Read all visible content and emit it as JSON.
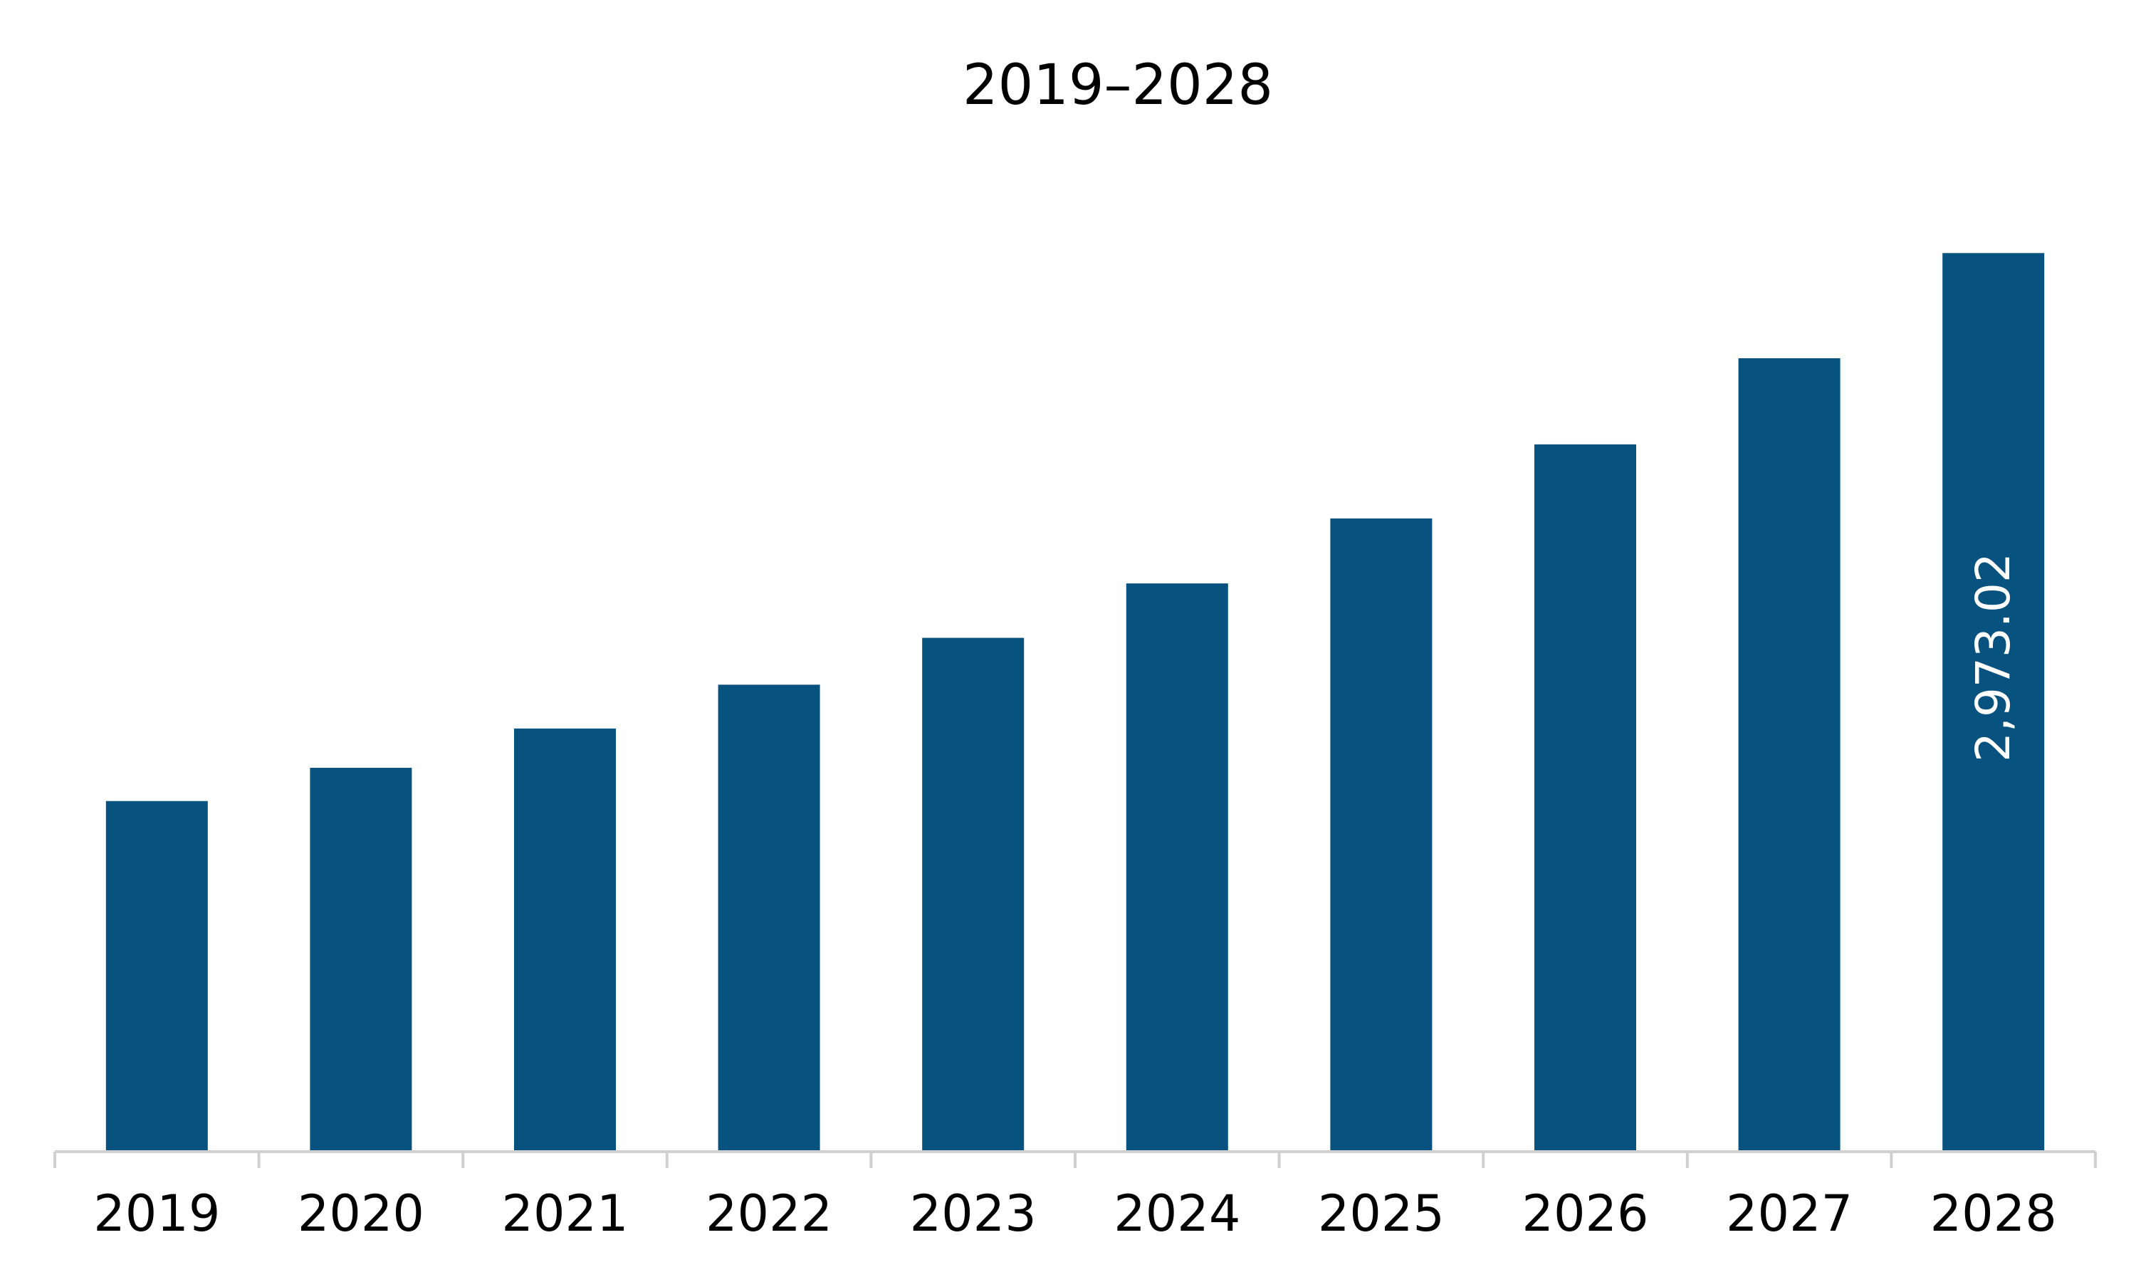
{
  "chart_data": {
    "type": "bar",
    "title": "2019–2028",
    "xlabel": "",
    "ylabel": "",
    "categories": [
      "2019",
      "2020",
      "2021",
      "2022",
      "2023",
      "2024",
      "2025",
      "2026",
      "2027",
      "2028"
    ],
    "values": [
      1160,
      1270,
      1400,
      1545,
      1700,
      1880,
      2095,
      2340,
      2625,
      2973.02
    ],
    "data_labels": [
      {
        "category": "2028",
        "text": "2,973.02"
      }
    ],
    "ylim": [
      0,
      3200
    ],
    "grid": false,
    "legend": "none",
    "colors": {
      "bar": "#08527f",
      "axis": "#d0d0d0",
      "label_inside": "#ffffff"
    }
  }
}
